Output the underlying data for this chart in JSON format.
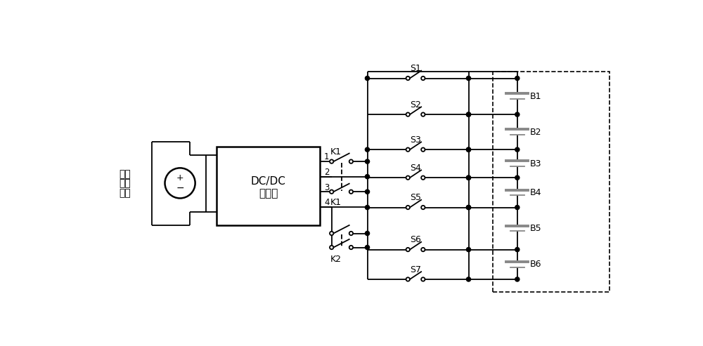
{
  "bg": "#ffffff",
  "lc": "#000000",
  "gc": "#888888",
  "lw": 1.3,
  "lw_thick": 1.8,
  "fig_w": 10.0,
  "fig_h": 4.93,
  "dpi": 100,
  "sw_labels": [
    "S1",
    "S2",
    "S3",
    "S4",
    "S5",
    "S6",
    "S7"
  ],
  "bat_labels": [
    "B1",
    "B2",
    "B3",
    "B4",
    "B5",
    "B6"
  ],
  "src_text": [
    "外部",
    "直流",
    "电源"
  ],
  "dcdc1": "DC/DC",
  "dcdc2": "变换器"
}
